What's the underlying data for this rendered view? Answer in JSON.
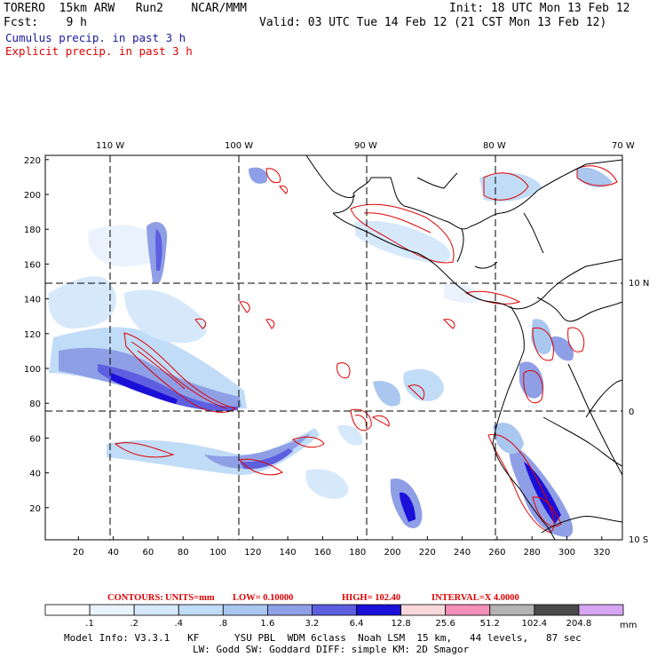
{
  "header": {
    "model": "TORERO  15km ARW   Run2    NCAR/MMM",
    "init": "Init: 18 UTC Mon 13 Feb 12",
    "fcst": "Fcst:    9 h",
    "valid": "Valid: 03 UTC Tue 14 Feb 12 (21 CST Mon 13 Feb 12)",
    "legend_cumulus": "Cumulus precip. in past 3 h",
    "legend_explicit": "Explicit precip. in past 3 h"
  },
  "colors": {
    "cumulus_label": "#1a1aa0",
    "explicit_label": "#e00000",
    "contour": "#e00000",
    "coast": "#000000",
    "grid": "#000000"
  },
  "map": {
    "lon_labels": [
      "110 W",
      "100 W",
      "90 W",
      "80 W",
      "70 W"
    ],
    "lat_labels": [
      "10 N",
      "0",
      "10 S"
    ],
    "y_ticks": [
      "220",
      "200",
      "180",
      "160",
      "140",
      "120",
      "100",
      "80",
      "60",
      "40",
      "20"
    ],
    "x_ticks": [
      "20",
      "40",
      "60",
      "80",
      "100",
      "120",
      "140",
      "160",
      "180",
      "200",
      "220",
      "240",
      "260",
      "280",
      "300",
      "320"
    ]
  },
  "contours_line": {
    "prefix": "CONTOURS:",
    "units": "UNITS=mm",
    "low": "LOW= 0.10000",
    "high": "HIGH=  102.40",
    "interval": "INTERVAL=X  4.0000"
  },
  "colorbar": {
    "labels": [
      ".1",
      ".2",
      ".4",
      ".8",
      "1.6",
      "3.2",
      "6.4",
      "12.8",
      "25.6",
      "51.2",
      "102.4",
      "204.8"
    ],
    "unit": "mm",
    "colors": [
      "#ffffff",
      "#eaf3fd",
      "#d6e9fb",
      "#c0dcf7",
      "#a9c7ef",
      "#8f9fe6",
      "#5d5ee0",
      "#1a10d8",
      "#f9d8dc",
      "#f48fb8",
      "#b3b3b3",
      "#4a4a4a",
      "#d6a6f2"
    ]
  },
  "footer": {
    "line1": "Model Info: V3.3.1   KF      YSU PBL  WDM 6class  Noah LSM  15 km,   44 levels,   87 sec",
    "line2": "LW: Godd SW: Goddard DIFF: simple KM: 2D Smagor"
  }
}
